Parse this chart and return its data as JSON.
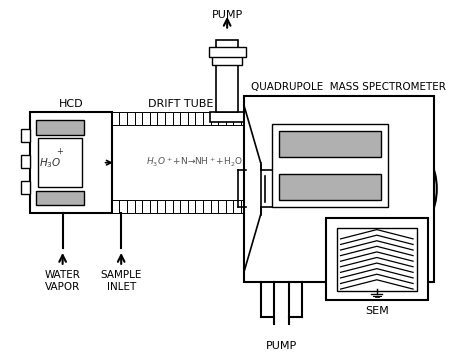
{
  "bg_color": "#ffffff",
  "line_color": "#000000",
  "gray_fill": "#b0b0b0",
  "labels": {
    "pump_top": "PUMP",
    "pump_bottom": "PUMP",
    "drift_tube": "DRIFT TUBE",
    "hcd": "HCD",
    "qms": "QUADRUPOLE  MASS SPECTROMETER",
    "water_vapor": "WATER\nVAPOR",
    "sample_inlet": "SAMPLE\nINLET",
    "sem": "SEM",
    "reaction": "$H_3O^+$+N→NH$^+$+H$_2$O",
    "h3o": "$H_3O$"
  },
  "figsize": [
    4.74,
    3.52
  ],
  "dpi": 100
}
